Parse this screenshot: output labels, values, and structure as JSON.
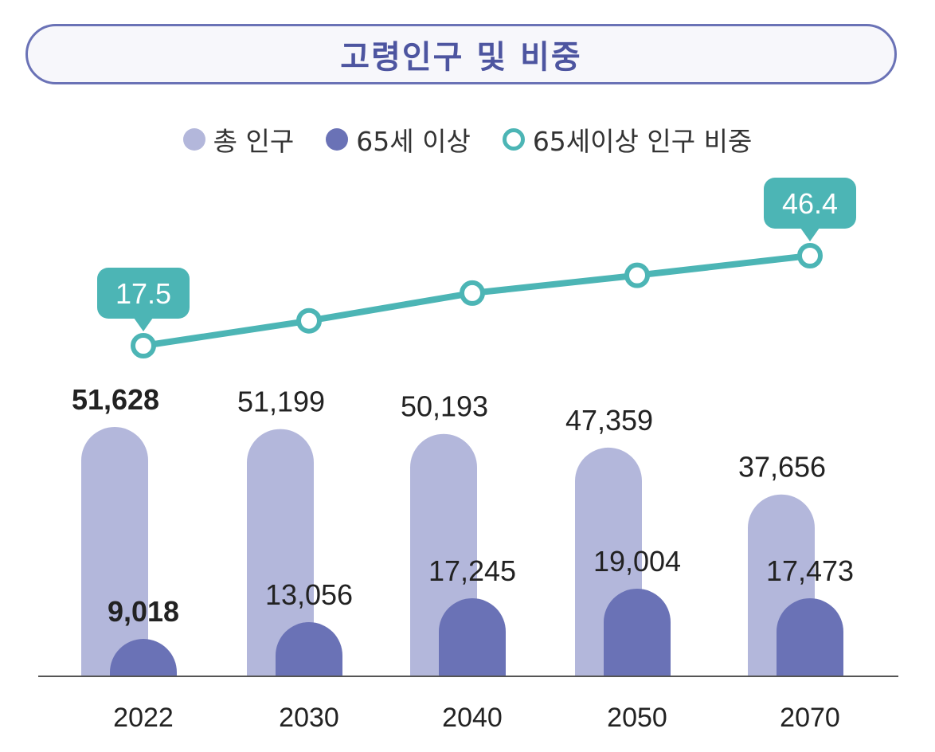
{
  "title": "고령인구 및 비중",
  "legend": [
    {
      "label": "총 인구",
      "color": "#b3b7db",
      "style": "filled"
    },
    {
      "label": "65세 이상",
      "color": "#6a72b6",
      "style": "filled"
    },
    {
      "label": "65세이상 인구 비중",
      "color": "#4cb5b5",
      "style": "ring"
    }
  ],
  "chart_data": {
    "type": "bar",
    "categories": [
      "2022",
      "2030",
      "2040",
      "2050",
      "2070"
    ],
    "series": [
      {
        "name": "총 인구",
        "values": [
          51628,
          51199,
          50193,
          47359,
          37656
        ],
        "labels": [
          "51,628",
          "51,199",
          "50,193",
          "47,359",
          "37,656"
        ],
        "color": "#b3b7db"
      },
      {
        "name": "65세 이상",
        "values": [
          9018,
          13056,
          17245,
          19004,
          17473
        ],
        "labels": [
          "9,018",
          "13,056",
          "17,245",
          "19,004",
          "17,473"
        ],
        "color": "#6a72b6"
      }
    ],
    "line_series": {
      "name": "65세이상 인구 비중",
      "values": [
        17.5,
        25.5,
        34.4,
        40.1,
        46.4
      ],
      "labeled": [
        {
          "index": 0,
          "label": "17.5"
        },
        {
          "index": 4,
          "label": "46.4"
        }
      ],
      "color": "#4cb5b5"
    },
    "xlabel": "",
    "ylabel": "",
    "grid": false,
    "legend_position": "top-center"
  }
}
